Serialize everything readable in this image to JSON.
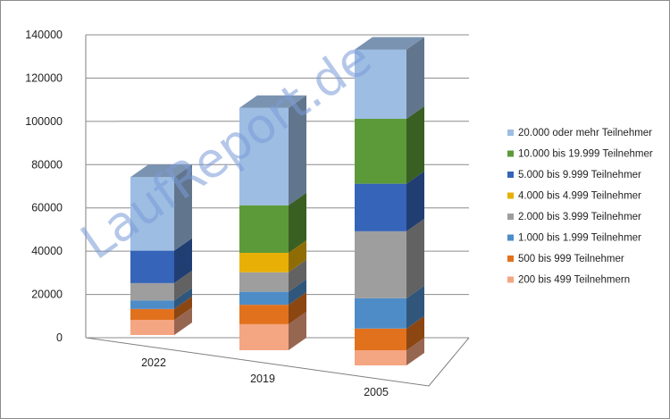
{
  "watermark": "LaufReport.de",
  "chart_data": {
    "type": "bar",
    "stacked": true,
    "three_d": true,
    "categories": [
      "2022",
      "2019",
      "2005"
    ],
    "ylim": [
      0,
      140000
    ],
    "yticks": [
      "0",
      "20000",
      "40000",
      "60000",
      "80000",
      "100000",
      "120000",
      "140000"
    ],
    "grid": true,
    "legend_position": "right",
    "series": [
      {
        "name": "200 bis 499 Teilnehmern",
        "color": "#f4a582",
        "values": [
          7000,
          12000,
          7000
        ]
      },
      {
        "name": "500 bis 999 Teilnehmer",
        "color": "#e2711d",
        "values": [
          5000,
          9000,
          10000
        ]
      },
      {
        "name": "1.000 bis 1.999 Teilnehmer",
        "color": "#4e8cc7",
        "values": [
          4000,
          6000,
          14000
        ]
      },
      {
        "name": "2.000 bis 3.999 Teilnehmer",
        "color": "#9e9e9e",
        "values": [
          8000,
          9000,
          31000
        ]
      },
      {
        "name": "4.000 bis 4.999 Teilnehmer",
        "color": "#e8b007",
        "values": [
          0,
          9000,
          0
        ]
      },
      {
        "name": "5.000 bis 9.999 Teilnehmer",
        "color": "#3564b9",
        "values": [
          15000,
          0,
          22000
        ]
      },
      {
        "name": "10.000 bis 19.999 Teilnehmer",
        "color": "#5c9a39",
        "values": [
          0,
          22000,
          30000
        ]
      },
      {
        "name": "20.000 oder mehr Teilnehmer",
        "color": "#9dbde3",
        "values": [
          34000,
          45000,
          32000
        ]
      }
    ]
  }
}
